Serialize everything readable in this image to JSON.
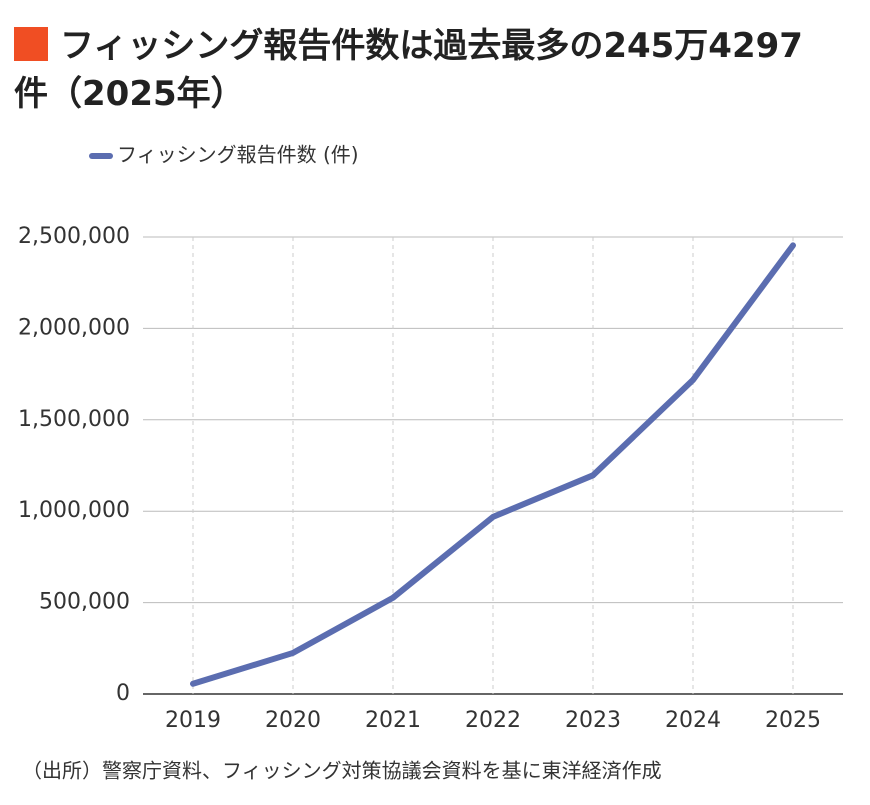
{
  "chart_data": {
    "type": "line",
    "title": "フィッシング報告件数は過去最多の245万4297件（2025年）",
    "categories": [
      "2019",
      "2020",
      "2021",
      "2022",
      "2023",
      "2024",
      "2025"
    ],
    "series": [
      {
        "name": "フィッシング報告件数 (件)",
        "color": "#5b6db0",
        "values": [
          55787,
          224676,
          526504,
          968832,
          1196390,
          1718036,
          2454297
        ]
      }
    ],
    "ylim": [
      0,
      2500000
    ],
    "yticks": [
      0,
      {
        "value": 500000,
        "label": "500,000"
      },
      {
        "value": 1000000,
        "label": "1,000,000"
      },
      {
        "value": 1500000,
        "label": "1,500,000"
      },
      {
        "value": 2000000,
        "label": "2,000,000"
      },
      {
        "value": 2500000,
        "label": "2,500,000"
      }
    ],
    "grid": true,
    "source": "（出所）警察庁資料、フィッシング対策協議会資料を基に東洋経済作成"
  }
}
